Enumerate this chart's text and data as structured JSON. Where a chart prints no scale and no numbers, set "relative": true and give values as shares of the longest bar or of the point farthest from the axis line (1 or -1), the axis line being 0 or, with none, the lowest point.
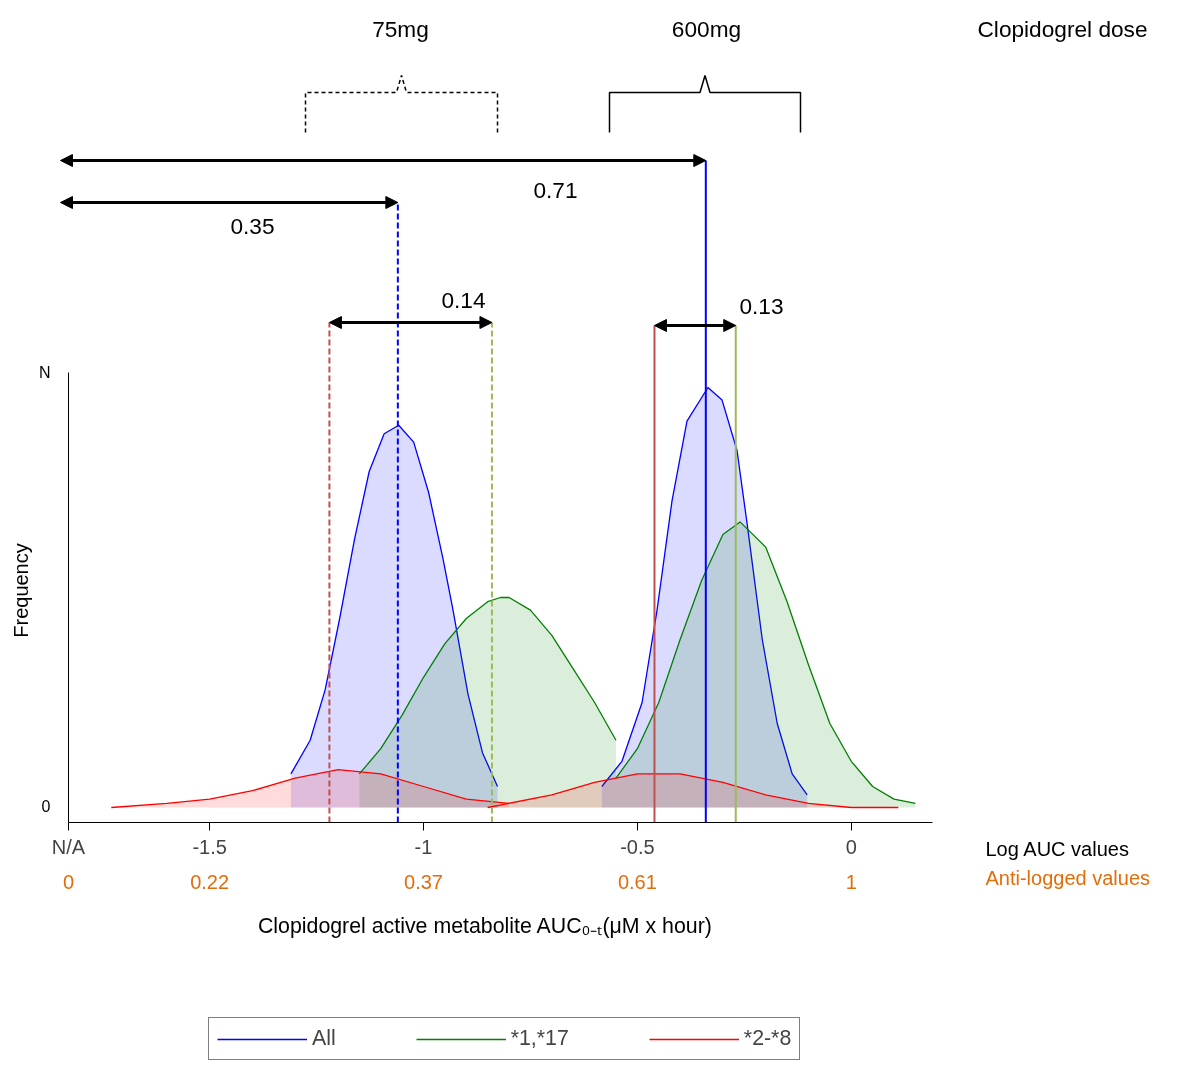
{
  "chart_data": {
    "type": "area",
    "relative": true,
    "xlabel": "Clopidogrel active metabolite AUC₀₋ₜ(μM x hour)",
    "ylabel": "Frequency",
    "xlim": [
      -1.83,
      0.19
    ],
    "xticks": [
      {
        "value": -1.83,
        "label": "N/A"
      },
      -1.5,
      -1,
      -0.5,
      0
    ],
    "legend": "bottom",
    "series": [
      {
        "name": "All",
        "color": "#0000ff",
        "x": [
          -1.31,
          -1.265,
          -1.23,
          -1.196,
          -1.161,
          -1.127,
          -1.092,
          -1.058,
          -1.023,
          -0.988,
          -0.954,
          -0.931,
          -0.896,
          -0.862,
          -0.827
        ],
        "values": [
          0.08,
          0.16,
          0.28,
          0.45,
          0.64,
          0.8,
          0.89,
          0.91,
          0.87,
          0.75,
          0.59,
          0.47,
          0.27,
          0.13,
          0.05
        ]
      },
      {
        "color": "#0000ff",
        "x": [
          -0.583,
          -0.536,
          -0.489,
          -0.454,
          -0.419,
          -0.384,
          -0.335,
          -0.302,
          -0.267,
          -0.244,
          -0.208,
          -0.173,
          -0.138,
          -0.103
        ],
        "values": [
          0.05,
          0.11,
          0.25,
          0.47,
          0.73,
          0.92,
          1.0,
          0.97,
          0.85,
          0.68,
          0.4,
          0.2,
          0.08,
          0.03
        ]
      },
      {
        "name": "*1,*17",
        "color": "#008000",
        "x": [
          -1.15,
          -1.1,
          -1.05,
          -1.0,
          -0.95,
          -0.9,
          -0.85,
          -0.82,
          -0.8,
          -0.75,
          -0.7,
          -0.65,
          -0.6,
          -0.55
        ],
        "values": [
          0.08,
          0.14,
          0.22,
          0.31,
          0.39,
          0.45,
          0.49,
          0.5,
          0.5,
          0.47,
          0.41,
          0.33,
          0.25,
          0.16
        ]
      },
      {
        "color": "#008000",
        "x": [
          -0.55,
          -0.5,
          -0.45,
          -0.4,
          -0.35,
          -0.3,
          -0.26,
          -0.2,
          -0.15,
          -0.1,
          -0.05,
          0.0,
          0.05,
          0.1,
          0.15
        ],
        "values": [
          0.07,
          0.14,
          0.25,
          0.4,
          0.54,
          0.65,
          0.68,
          0.62,
          0.49,
          0.34,
          0.2,
          0.11,
          0.05,
          0.02,
          0.01
        ]
      },
      {
        "name": "*2-*8",
        "color": "#ff0000",
        "x": [
          -1.73,
          -1.6,
          -1.5,
          -1.4,
          -1.3,
          -1.2,
          -1.1,
          -1.0,
          -0.9,
          -0.8
        ],
        "values": [
          0.0,
          0.01,
          0.02,
          0.04,
          0.07,
          0.09,
          0.08,
          0.05,
          0.02,
          0.01
        ]
      },
      {
        "color": "#ff0000",
        "x": [
          -0.85,
          -0.7,
          -0.6,
          -0.5,
          -0.45,
          -0.4,
          -0.3,
          -0.2,
          -0.1,
          0.0,
          0.11
        ],
        "values": [
          0.0,
          0.03,
          0.06,
          0.08,
          0.08,
          0.08,
          0.06,
          0.03,
          0.01,
          0.0,
          0.0
        ]
      }
    ],
    "ref_lines": [
      {
        "axis": "x",
        "value": -1.22,
        "color": "#c0504d",
        "line_style": "dashed"
      },
      {
        "axis": "x",
        "value": -1.06,
        "color": "#0000ff",
        "line_style": "dashed"
      },
      {
        "axis": "x",
        "value": -0.84,
        "color": "#9bbb59",
        "line_style": "dashed"
      },
      {
        "axis": "x",
        "value": -0.46,
        "color": "#c0504d",
        "line_style": "solid"
      },
      {
        "axis": "x",
        "value": -0.34,
        "color": "#0000ff",
        "line_style": "solid"
      },
      {
        "axis": "x",
        "value": -0.27,
        "color": "#9bbb59",
        "line_style": "solid"
      }
    ],
    "annotations": [
      "75mg",
      "600mg",
      "Clopidogrel dose",
      "0.71",
      "0.35",
      "0.14",
      "0.13",
      "Log AUC values",
      "Anti-logged values",
      "N",
      "0",
      "0",
      "0.22",
      "0.37",
      "0.61",
      "1"
    ]
  }
}
